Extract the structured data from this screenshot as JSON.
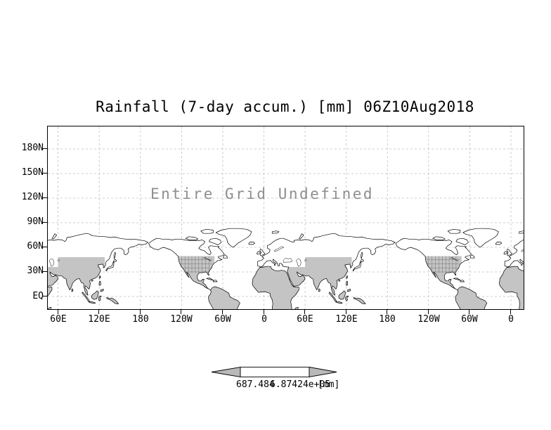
{
  "title": "Rainfall (7-day accum.) [mm] 06Z10Aug2018",
  "undefined_message": "Entire Grid Undefined",
  "y_axis": {
    "labels": [
      "180N",
      "150N",
      "120N",
      "90N",
      "60N",
      "30N",
      "EQ"
    ]
  },
  "x_axis": {
    "labels": [
      "60E",
      "120E",
      "180",
      "120W",
      "60W",
      "0",
      "60E",
      "120E",
      "180",
      "120W",
      "60W",
      "0"
    ]
  },
  "colorbar": {
    "left_label": "687.484",
    "right_label": "6.87424e+05",
    "units_label": "[mm]",
    "arrow_color": "#b9b9b9",
    "bar_fill": "#ffffff"
  },
  "map": {
    "land_fill": "#ffffff",
    "shaded_fill": "#c4c4c4",
    "coast_color": "#000000",
    "grid_color": "#c0c0c0",
    "message_color": "#8e8e8e"
  },
  "chart_data": {
    "type": "heatmap",
    "title": "Rainfall (7-day accum.) [mm] 06Z10Aug2018",
    "variable": "Rainfall (7-day accum.)",
    "units": "mm",
    "valid_time": "06Z10Aug2018",
    "status": "Entire Grid Undefined",
    "values": [],
    "y_ticks": [
      "180N",
      "150N",
      "120N",
      "90N",
      "60N",
      "30N",
      "EQ"
    ],
    "x_ticks": [
      "60E",
      "120E",
      "180",
      "120W",
      "60W",
      "0",
      "60E",
      "120E",
      "180",
      "120W",
      "60W",
      "0"
    ],
    "colorbar_range": [
      687.484,
      687424
    ],
    "legend_position": "bottom",
    "grid": true
  }
}
